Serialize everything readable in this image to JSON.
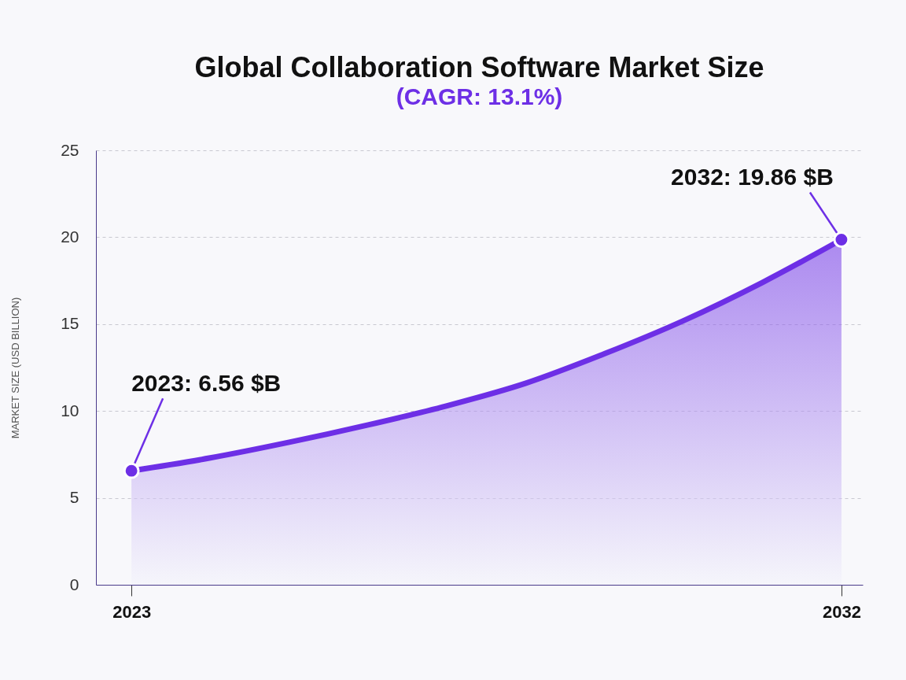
{
  "chart_data": {
    "type": "area",
    "title": "Global Collaboration Software Market Size",
    "subtitle": "(CAGR: 13.1%)",
    "ylabel": "MARKET SIZE (USD BILLION)",
    "x": [
      2023,
      2024,
      2025,
      2026,
      2027,
      2028,
      2029,
      2030,
      2031,
      2032
    ],
    "series": [
      {
        "color": "#6d2fe6",
        "values": [
          6.56,
          7.3,
          8.2,
          9.2,
          10.3,
          11.6,
          13.3,
          15.2,
          17.4,
          19.86
        ]
      }
    ],
    "xlim": [
      2022.55,
      2032.27
    ],
    "xticks": [
      2023,
      2032
    ],
    "ylim": [
      0,
      25
    ],
    "yticks": [
      0,
      5,
      10,
      15,
      20,
      25
    ],
    "grid": "y",
    "line_style": "solid",
    "annotations": [
      {
        "text": "2023: 6.56 $B",
        "x": 2023,
        "y": 6.56
      },
      {
        "text": "2032: 19.86 $B",
        "x": 2032,
        "y": 19.86
      }
    ]
  }
}
